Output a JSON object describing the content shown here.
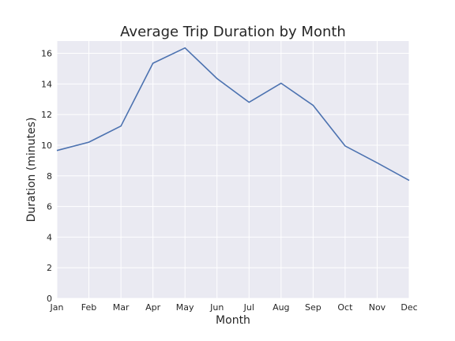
{
  "chart_data": {
    "type": "line",
    "title": "Average Trip Duration by Month",
    "xlabel": "Month",
    "ylabel": "Duration (minutes)",
    "categories": [
      "Jan",
      "Feb",
      "Mar",
      "Apr",
      "May",
      "Jun",
      "Jul",
      "Aug",
      "Sep",
      "Oct",
      "Nov",
      "Dec"
    ],
    "series": [
      {
        "name": "Average Trip Duration",
        "values": [
          9.65,
          10.2,
          11.25,
          15.35,
          16.35,
          14.35,
          12.8,
          14.05,
          12.6,
          9.95,
          8.85,
          7.7
        ]
      }
    ],
    "yticks": [
      0,
      2,
      4,
      6,
      8,
      10,
      12,
      14,
      16
    ],
    "ylim": [
      0,
      16.8
    ],
    "grid": true,
    "colors": {
      "line": "#4c72b0",
      "plot_bg": "#eaeaf2",
      "grid": "#ffffff",
      "text": "#262626"
    }
  }
}
